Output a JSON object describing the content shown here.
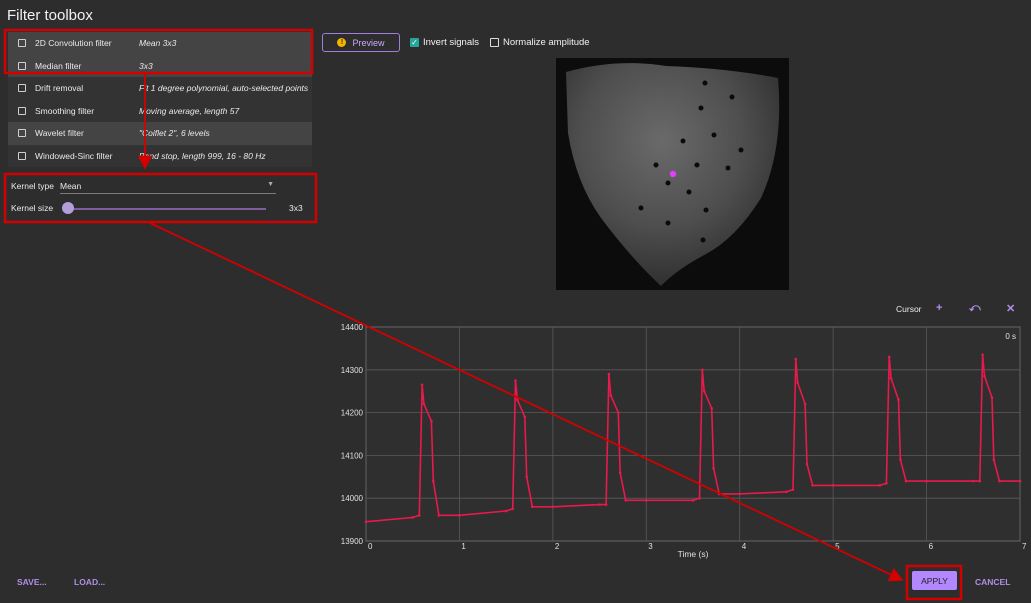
{
  "window": {
    "title": "Filter toolbox"
  },
  "filters": [
    {
      "label": "2D Convolution filter",
      "desc": "Mean 3x3",
      "checked": false
    },
    {
      "label": "Median filter",
      "desc": "3x3",
      "checked": false
    },
    {
      "label": "Drift removal",
      "desc": "Fit 1 degree polynomial, auto-selected points",
      "checked": false
    },
    {
      "label": "Smoothing filter",
      "desc": "Moving average, length 57",
      "checked": false
    },
    {
      "label": "Wavelet filter",
      "desc": "\"Coiflet 2\", 6 levels",
      "checked": false
    },
    {
      "label": "Windowed-Sinc filter",
      "desc": "Band stop, length 999, 16 - 80 Hz",
      "checked": false
    }
  ],
  "params": {
    "kernel_type_label": "Kernel type",
    "kernel_type_value": "Mean",
    "kernel_size_label": "Kernel size",
    "kernel_size_value": "3x3",
    "kernel_size_slider": 0
  },
  "toolbar": {
    "preview_label": "Preview",
    "invert_label": "Invert signals",
    "invert_checked": true,
    "normalize_label": "Normalize amplitude",
    "normalize_checked": false
  },
  "cursor": {
    "label": "Cursor",
    "add_icon": "plus-icon",
    "undo_icon": "undo-icon",
    "close_icon": "close-icon"
  },
  "colors": {
    "accent": "#b388ff",
    "signal": "#e8194b",
    "checkbox_on": "#26a69a",
    "annotation": "#d40000",
    "marker": "#e040fb"
  },
  "chart_data": {
    "type": "line",
    "xlabel": "Time (s)",
    "ylabel": "",
    "xlim": [
      0,
      7
    ],
    "ylim": [
      13900,
      14400
    ],
    "xticks": [
      0,
      1,
      2,
      3,
      4,
      5,
      6,
      7
    ],
    "yticks": [
      13900,
      14000,
      14100,
      14200,
      14300,
      14400
    ],
    "time_label": "0 s",
    "grid": true,
    "series": [
      {
        "x": [
          0,
          0.5,
          0.57,
          0.6,
          0.62,
          0.7,
          0.72,
          0.78,
          1.0,
          1.5,
          1.57,
          1.6,
          1.62,
          1.7,
          1.72,
          1.78,
          2.0,
          2.5,
          2.57,
          2.6,
          2.62,
          2.7,
          2.72,
          2.78,
          3.0,
          3.5,
          3.57,
          3.6,
          3.62,
          3.7,
          3.72,
          3.78,
          4.0,
          4.5,
          4.57,
          4.6,
          4.62,
          4.7,
          4.72,
          4.78,
          5.0,
          5.5,
          5.57,
          5.6,
          5.62,
          5.7,
          5.72,
          5.78,
          6.0,
          6.5,
          6.57,
          6.6,
          6.62,
          6.7,
          6.72,
          6.78,
          7.0
        ],
        "y": [
          13945,
          13955,
          13960,
          14265,
          14220,
          14180,
          14040,
          13960,
          13960,
          13970,
          13975,
          14275,
          14230,
          14190,
          14050,
          13980,
          13980,
          13985,
          13985,
          14290,
          14240,
          14200,
          14060,
          13995,
          13995,
          13995,
          14000,
          14300,
          14250,
          14210,
          14070,
          14010,
          14010,
          14015,
          14020,
          14325,
          14270,
          14220,
          14080,
          14030,
          14030,
          14030,
          14035,
          14330,
          14280,
          14230,
          14090,
          14040,
          14040,
          14040,
          14040,
          14335,
          14285,
          14235,
          14090,
          14040,
          14040
        ]
      }
    ]
  },
  "footer": {
    "save_label": "SAVE...",
    "load_label": "LOAD...",
    "apply_label": "APPLY",
    "cancel_label": "CANCEL"
  }
}
